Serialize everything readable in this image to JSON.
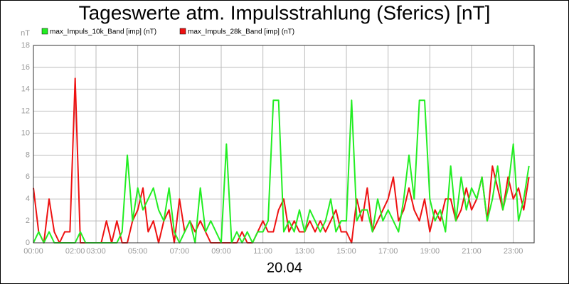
{
  "chart_data": {
    "type": "line",
    "title": "Tageswerte atm. Impulsstrahlung (Sferics) [nT]",
    "y_label": "nT",
    "x_label": "20.04",
    "x": [
      0,
      0.25,
      0.5,
      0.75,
      1,
      1.25,
      1.5,
      1.75,
      2,
      2.25,
      2.5,
      2.75,
      3,
      3.25,
      3.5,
      3.75,
      4,
      4.25,
      4.5,
      4.75,
      5,
      5.25,
      5.5,
      5.75,
      6,
      6.25,
      6.5,
      6.75,
      7,
      7.25,
      7.5,
      7.75,
      8,
      8.25,
      8.5,
      8.75,
      9,
      9.25,
      9.5,
      9.75,
      10,
      10.25,
      10.5,
      10.75,
      11,
      11.25,
      11.5,
      11.75,
      12,
      12.25,
      12.5,
      12.75,
      13,
      13.25,
      13.5,
      13.75,
      14,
      14.25,
      14.5,
      14.75,
      15,
      15.25,
      15.5,
      15.75,
      16,
      16.25,
      16.5,
      16.75,
      17,
      17.25,
      17.5,
      17.75,
      18,
      18.25,
      18.5,
      18.75,
      19,
      19.25,
      19.5,
      19.75,
      20,
      20.25,
      20.5,
      20.75,
      21,
      21.25,
      21.5,
      21.75,
      22,
      22.25,
      22.5,
      22.75,
      23,
      23.25,
      23.5,
      23.75
    ],
    "series": [
      {
        "name": "max_Impuls_28k_Band [imp] (nT)",
        "color": "#ee1111",
        "values": [
          5,
          1,
          0,
          4,
          1,
          0,
          1,
          1,
          15,
          0,
          0,
          0,
          0,
          0,
          2,
          0,
          2,
          0,
          0,
          2,
          3,
          5,
          1,
          2,
          0,
          2,
          3,
          0,
          4,
          1,
          2,
          1,
          2,
          1,
          0,
          0,
          0,
          0,
          0,
          0,
          1,
          0,
          0,
          1,
          2,
          1,
          1,
          3,
          4,
          1,
          2,
          1,
          1,
          2,
          1,
          2,
          1,
          2,
          3,
          1,
          1,
          0,
          4,
          2,
          5,
          1,
          2,
          3,
          4,
          6,
          2,
          3,
          5,
          3,
          2,
          4,
          1,
          3,
          2,
          4,
          4,
          2,
          3,
          5,
          3,
          4,
          6,
          2,
          7,
          5,
          3,
          6,
          4,
          5,
          3,
          6
        ]
      },
      {
        "name": "max_Impuls_10k_Band [imp] (nT)",
        "color": "#22ee22",
        "values": [
          0,
          1,
          0,
          1,
          0,
          0,
          0,
          0,
          0,
          1,
          0,
          0,
          0,
          0,
          0,
          0,
          0,
          1,
          8,
          2,
          5,
          3,
          4,
          5,
          3,
          2,
          5,
          1,
          0,
          1,
          2,
          0,
          5,
          1,
          2,
          1,
          0,
          9,
          0,
          1,
          0,
          1,
          0,
          1,
          1,
          2,
          13,
          13,
          1,
          2,
          1,
          3,
          1,
          3,
          2,
          1,
          2,
          4,
          1,
          2,
          2,
          13,
          2,
          3,
          3,
          1,
          4,
          2,
          3,
          2,
          1,
          4,
          8,
          4,
          13,
          13,
          4,
          2,
          3,
          1,
          7,
          2,
          6,
          3,
          5,
          4,
          6,
          2,
          4,
          7,
          3,
          5,
          9,
          2,
          4,
          7
        ]
      }
    ],
    "legend_order": [
      1,
      0
    ],
    "xlim": [
      0,
      24
    ],
    "xticks": [
      {
        "value": 0,
        "label": "00:00"
      },
      {
        "value": 2,
        "label": "02:00"
      },
      {
        "value": 3,
        "label": "03:00"
      },
      {
        "value": 5,
        "label": "05:00"
      },
      {
        "value": 7,
        "label": "07:00"
      },
      {
        "value": 9,
        "label": "09:00"
      },
      {
        "value": 11,
        "label": "11:00"
      },
      {
        "value": 13,
        "label": "13:00"
      },
      {
        "value": 15,
        "label": "15:00"
      },
      {
        "value": 17,
        "label": "17:00"
      },
      {
        "value": 19,
        "label": "19:00"
      },
      {
        "value": 21,
        "label": "21:00"
      },
      {
        "value": 23,
        "label": "23:00"
      }
    ],
    "ylim": [
      0,
      18
    ],
    "yticks": [
      0,
      2,
      4,
      6,
      8,
      10,
      12,
      14,
      16,
      18
    ],
    "grid": true
  }
}
